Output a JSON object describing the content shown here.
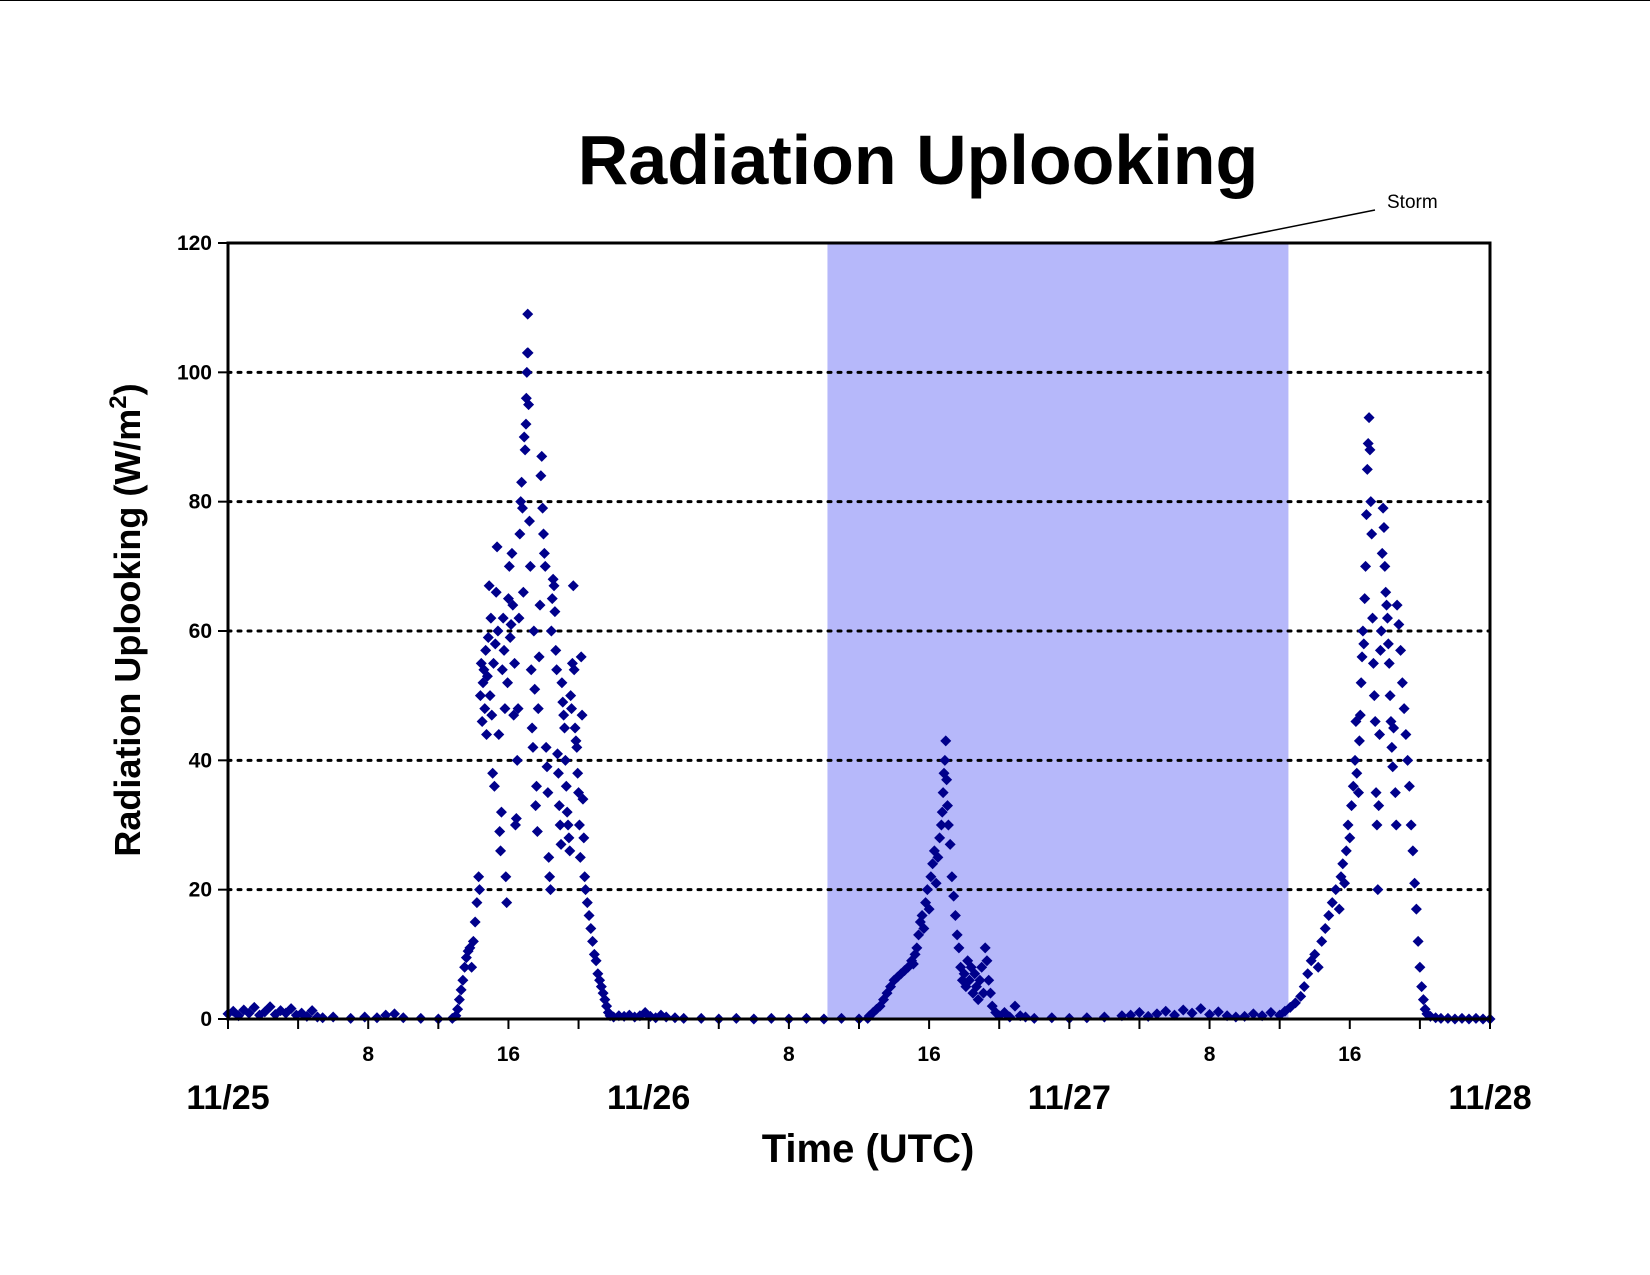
{
  "chart_data": {
    "type": "scatter",
    "title": "Radiation Uplooking",
    "xlabel": "Time (UTC)",
    "ylabel": "Radiation Uplooking (W/m",
    "ylabel_superscript": "2",
    "ylabel_close": ")",
    "xlim_hours": [
      0,
      72
    ],
    "ylim": [
      0,
      120
    ],
    "yticks": [
      0,
      20,
      40,
      60,
      80,
      100,
      120
    ],
    "gridlines_y": [
      20,
      40,
      60,
      80,
      100
    ],
    "grid_style": "dotted",
    "legend": "none",
    "x_date_labels": [
      {
        "hour": 0,
        "label": "11/25"
      },
      {
        "hour": 24,
        "label": "11/26"
      },
      {
        "hour": 48,
        "label": "11/27"
      },
      {
        "hour": 72,
        "label": "11/28"
      }
    ],
    "x_minor_labels": [
      {
        "hour": 8,
        "label": "8"
      },
      {
        "hour": 16,
        "label": "16"
      },
      {
        "hour": 32,
        "label": "8"
      },
      {
        "hour": 40,
        "label": "16"
      },
      {
        "hour": 56,
        "label": "8"
      },
      {
        "hour": 64,
        "label": "16"
      }
    ],
    "x_tick_interval_hours": 4,
    "storm_period_hours": [
      34.2,
      60.5
    ],
    "storm_color": "#b6b8fa",
    "annotation": "Storm",
    "marker_color": "#00008b",
    "marker": "diamond",
    "series_points": [
      [
        0.0,
        0.8
      ],
      [
        0.3,
        1.2
      ],
      [
        0.6,
        0.5
      ],
      [
        0.9,
        1.4
      ],
      [
        1.2,
        0.9
      ],
      [
        1.5,
        1.8
      ],
      [
        1.8,
        0.6
      ],
      [
        2.1,
        1.1
      ],
      [
        2.4,
        1.9
      ],
      [
        2.7,
        0.7
      ],
      [
        3.0,
        1.3
      ],
      [
        3.3,
        0.9
      ],
      [
        3.6,
        1.6
      ],
      [
        3.9,
        0.6
      ],
      [
        4.2,
        0.9
      ],
      [
        4.5,
        0.4
      ],
      [
        4.8,
        1.3
      ],
      [
        5.1,
        0.3
      ],
      [
        5.4,
        0.2
      ],
      [
        6.0,
        0.3
      ],
      [
        7.0,
        0.1
      ],
      [
        7.8,
        0.3
      ],
      [
        8.5,
        0.2
      ],
      [
        9.0,
        0.6
      ],
      [
        9.5,
        0.8
      ],
      [
        10.0,
        0.2
      ],
      [
        11.0,
        0.1
      ],
      [
        12.0,
        0.0
      ],
      [
        12.8,
        0.1
      ],
      [
        13.0,
        0.5
      ],
      [
        13.1,
        1.5
      ],
      [
        13.2,
        3.0
      ],
      [
        13.3,
        4.5
      ],
      [
        13.4,
        6.0
      ],
      [
        13.5,
        8.0
      ],
      [
        13.6,
        9.5
      ],
      [
        13.7,
        10.5
      ],
      [
        13.8,
        11.0
      ],
      [
        13.9,
        8.0
      ],
      [
        14.0,
        12.0
      ],
      [
        14.1,
        15.0
      ],
      [
        14.2,
        18.0
      ],
      [
        14.3,
        22.0
      ],
      [
        14.35,
        20.0
      ],
      [
        14.4,
        50.0
      ],
      [
        14.45,
        55.0
      ],
      [
        14.5,
        46.0
      ],
      [
        14.55,
        52.0
      ],
      [
        14.6,
        54.0
      ],
      [
        14.65,
        48.0
      ],
      [
        14.7,
        57.0
      ],
      [
        14.75,
        44.0
      ],
      [
        14.8,
        53.0
      ],
      [
        14.85,
        59.0
      ],
      [
        14.9,
        67.0
      ],
      [
        14.95,
        50.0
      ],
      [
        15.0,
        62.0
      ],
      [
        15.05,
        47.0
      ],
      [
        15.1,
        38.0
      ],
      [
        15.15,
        55.0
      ],
      [
        15.2,
        36.0
      ],
      [
        15.25,
        58.0
      ],
      [
        15.3,
        66.0
      ],
      [
        15.35,
        73.0
      ],
      [
        15.4,
        60.0
      ],
      [
        15.45,
        44.0
      ],
      [
        15.5,
        29.0
      ],
      [
        15.55,
        26.0
      ],
      [
        15.6,
        32.0
      ],
      [
        15.65,
        54.0
      ],
      [
        15.7,
        62.0
      ],
      [
        15.75,
        57.0
      ],
      [
        15.8,
        48.0
      ],
      [
        15.85,
        22.0
      ],
      [
        15.9,
        18.0
      ],
      [
        15.95,
        52.0
      ],
      [
        16.0,
        65.0
      ],
      [
        16.05,
        70.0
      ],
      [
        16.1,
        59.0
      ],
      [
        16.15,
        61.0
      ],
      [
        16.2,
        72.0
      ],
      [
        16.25,
        64.0
      ],
      [
        16.3,
        47.0
      ],
      [
        16.35,
        55.0
      ],
      [
        16.4,
        30.0
      ],
      [
        16.45,
        31.0
      ],
      [
        16.5,
        40.0
      ],
      [
        16.55,
        48.0
      ],
      [
        16.6,
        62.0
      ],
      [
        16.65,
        75.0
      ],
      [
        16.7,
        80.0
      ],
      [
        16.75,
        83.0
      ],
      [
        16.8,
        79.0
      ],
      [
        16.85,
        66.0
      ],
      [
        16.9,
        90.0
      ],
      [
        16.95,
        88.0
      ],
      [
        17.0,
        92.0
      ],
      [
        17.02,
        96.0
      ],
      [
        17.05,
        100.0
      ],
      [
        17.08,
        103.0
      ],
      [
        17.1,
        109.0
      ],
      [
        17.12,
        103.0
      ],
      [
        17.15,
        95.0
      ],
      [
        17.2,
        77.0
      ],
      [
        17.25,
        70.0
      ],
      [
        17.3,
        54.0
      ],
      [
        17.35,
        45.0
      ],
      [
        17.4,
        42.0
      ],
      [
        17.45,
        60.0
      ],
      [
        17.5,
        51.0
      ],
      [
        17.55,
        33.0
      ],
      [
        17.6,
        36.0
      ],
      [
        17.65,
        29.0
      ],
      [
        17.7,
        48.0
      ],
      [
        17.75,
        56.0
      ],
      [
        17.8,
        64.0
      ],
      [
        17.85,
        84.0
      ],
      [
        17.9,
        87.0
      ],
      [
        17.95,
        79.0
      ],
      [
        18.0,
        75.0
      ],
      [
        18.05,
        72.0
      ],
      [
        18.1,
        70.0
      ],
      [
        18.15,
        42.0
      ],
      [
        18.2,
        39.0
      ],
      [
        18.25,
        35.0
      ],
      [
        18.3,
        25.0
      ],
      [
        18.35,
        22.0
      ],
      [
        18.4,
        20.0
      ],
      [
        18.45,
        60.0
      ],
      [
        18.5,
        65.0
      ],
      [
        18.55,
        68.0
      ],
      [
        18.6,
        67.0
      ],
      [
        18.65,
        63.0
      ],
      [
        18.7,
        57.0
      ],
      [
        18.75,
        54.0
      ],
      [
        18.8,
        41.0
      ],
      [
        18.85,
        38.0
      ],
      [
        18.9,
        33.0
      ],
      [
        18.95,
        30.0
      ],
      [
        19.0,
        27.0
      ],
      [
        19.05,
        52.0
      ],
      [
        19.1,
        49.0
      ],
      [
        19.15,
        47.0
      ],
      [
        19.2,
        45.0
      ],
      [
        19.25,
        40.0
      ],
      [
        19.3,
        36.0
      ],
      [
        19.35,
        32.0
      ],
      [
        19.4,
        30.0
      ],
      [
        19.45,
        28.0
      ],
      [
        19.5,
        26.0
      ],
      [
        19.55,
        50.0
      ],
      [
        19.6,
        48.0
      ],
      [
        19.65,
        55.0
      ],
      [
        19.7,
        67.0
      ],
      [
        19.75,
        54.0
      ],
      [
        19.8,
        45.0
      ],
      [
        19.85,
        43.0
      ],
      [
        19.9,
        42.0
      ],
      [
        19.95,
        38.0
      ],
      [
        20.0,
        35.0
      ],
      [
        20.05,
        30.0
      ],
      [
        20.1,
        25.0
      ],
      [
        20.15,
        56.0
      ],
      [
        20.2,
        47.0
      ],
      [
        20.25,
        34.0
      ],
      [
        20.3,
        28.0
      ],
      [
        20.35,
        22.0
      ],
      [
        20.4,
        20.0
      ],
      [
        20.5,
        18.0
      ],
      [
        20.6,
        16.0
      ],
      [
        20.7,
        14.0
      ],
      [
        20.8,
        12.0
      ],
      [
        20.9,
        10.0
      ],
      [
        21.0,
        9.0
      ],
      [
        21.1,
        7.0
      ],
      [
        21.2,
        6.0
      ],
      [
        21.3,
        5.0
      ],
      [
        21.4,
        4.0
      ],
      [
        21.5,
        3.0
      ],
      [
        21.6,
        2.0
      ],
      [
        21.7,
        1.0
      ],
      [
        21.8,
        0.5
      ],
      [
        22.0,
        0.3
      ],
      [
        22.3,
        0.5
      ],
      [
        22.6,
        0.4
      ],
      [
        22.9,
        0.6
      ],
      [
        23.2,
        0.3
      ],
      [
        23.5,
        0.5
      ],
      [
        23.8,
        1.0
      ],
      [
        24.1,
        0.4
      ],
      [
        24.4,
        0.2
      ],
      [
        24.7,
        0.6
      ],
      [
        25.0,
        0.3
      ],
      [
        25.5,
        0.2
      ],
      [
        26.0,
        0.1
      ],
      [
        27.0,
        0.1
      ],
      [
        28.0,
        0.0
      ],
      [
        29.0,
        0.1
      ],
      [
        30.0,
        0.0
      ],
      [
        31.0,
        0.1
      ],
      [
        32.0,
        0.0
      ],
      [
        33.0,
        0.1
      ],
      [
        34.0,
        0.0
      ],
      [
        35.0,
        0.1
      ],
      [
        36.0,
        0.0
      ],
      [
        36.5,
        0.1
      ],
      [
        36.6,
        0.5
      ],
      [
        36.8,
        1.0
      ],
      [
        37.0,
        1.5
      ],
      [
        37.2,
        2.0
      ],
      [
        37.4,
        3.0
      ],
      [
        37.6,
        4.0
      ],
      [
        37.8,
        5.0
      ],
      [
        38.0,
        6.0
      ],
      [
        38.2,
        6.5
      ],
      [
        38.4,
        7.0
      ],
      [
        38.6,
        7.5
      ],
      [
        38.8,
        8.0
      ],
      [
        39.0,
        9.0
      ],
      [
        39.1,
        8.5
      ],
      [
        39.2,
        10.0
      ],
      [
        39.3,
        11.0
      ],
      [
        39.4,
        13.0
      ],
      [
        39.5,
        15.0
      ],
      [
        39.6,
        16.0
      ],
      [
        39.7,
        14.0
      ],
      [
        39.8,
        18.0
      ],
      [
        39.9,
        20.0
      ],
      [
        40.0,
        17.0
      ],
      [
        40.1,
        22.0
      ],
      [
        40.2,
        24.0
      ],
      [
        40.3,
        26.0
      ],
      [
        40.4,
        21.0
      ],
      [
        40.5,
        25.0
      ],
      [
        40.6,
        28.0
      ],
      [
        40.7,
        30.0
      ],
      [
        40.75,
        32.0
      ],
      [
        40.8,
        35.0
      ],
      [
        40.85,
        38.0
      ],
      [
        40.9,
        40.0
      ],
      [
        40.95,
        43.0
      ],
      [
        41.0,
        37.0
      ],
      [
        41.05,
        33.0
      ],
      [
        41.1,
        30.0
      ],
      [
        41.2,
        27.0
      ],
      [
        41.3,
        22.0
      ],
      [
        41.4,
        19.0
      ],
      [
        41.5,
        16.0
      ],
      [
        41.6,
        13.0
      ],
      [
        41.7,
        11.0
      ],
      [
        41.8,
        8.0
      ],
      [
        41.9,
        6.0
      ],
      [
        42.0,
        7.0
      ],
      [
        42.1,
        5.0
      ],
      [
        42.2,
        9.0
      ],
      [
        42.3,
        6.0
      ],
      [
        42.4,
        8.0
      ],
      [
        42.5,
        4.0
      ],
      [
        42.6,
        7.0
      ],
      [
        42.7,
        5.0
      ],
      [
        42.8,
        3.0
      ],
      [
        42.9,
        6.0
      ],
      [
        43.0,
        8.0
      ],
      [
        43.1,
        4.0
      ],
      [
        43.2,
        11.0
      ],
      [
        43.3,
        9.0
      ],
      [
        43.4,
        6.0
      ],
      [
        43.5,
        4.0
      ],
      [
        43.6,
        2.0
      ],
      [
        43.8,
        1.0
      ],
      [
        44.0,
        0.5
      ],
      [
        44.3,
        1.0
      ],
      [
        44.6,
        0.3
      ],
      [
        44.9,
        2.0
      ],
      [
        45.2,
        0.5
      ],
      [
        45.5,
        0.3
      ],
      [
        46.0,
        0.1
      ],
      [
        47.0,
        0.2
      ],
      [
        48.0,
        0.1
      ],
      [
        49.0,
        0.2
      ],
      [
        50.0,
        0.3
      ],
      [
        51.0,
        0.5
      ],
      [
        51.5,
        0.6
      ],
      [
        52.0,
        1.0
      ],
      [
        52.5,
        0.4
      ],
      [
        53.0,
        0.8
      ],
      [
        53.5,
        1.2
      ],
      [
        54.0,
        0.6
      ],
      [
        54.5,
        1.4
      ],
      [
        55.0,
        0.9
      ],
      [
        55.5,
        1.6
      ],
      [
        56.0,
        0.7
      ],
      [
        56.5,
        1.1
      ],
      [
        57.0,
        0.5
      ],
      [
        57.5,
        0.3
      ],
      [
        58.0,
        0.4
      ],
      [
        58.5,
        0.8
      ],
      [
        59.0,
        0.5
      ],
      [
        59.5,
        1.0
      ],
      [
        60.0,
        0.6
      ],
      [
        60.3,
        1.2
      ],
      [
        60.6,
        1.8
      ],
      [
        60.9,
        2.5
      ],
      [
        61.2,
        3.5
      ],
      [
        61.4,
        5.0
      ],
      [
        61.6,
        7.0
      ],
      [
        61.8,
        9.0
      ],
      [
        62.0,
        10.0
      ],
      [
        62.2,
        8.0
      ],
      [
        62.4,
        12.0
      ],
      [
        62.6,
        14.0
      ],
      [
        62.8,
        16.0
      ],
      [
        63.0,
        18.0
      ],
      [
        63.2,
        20.0
      ],
      [
        63.4,
        17.0
      ],
      [
        63.5,
        22.0
      ],
      [
        63.6,
        24.0
      ],
      [
        63.7,
        21.0
      ],
      [
        63.8,
        26.0
      ],
      [
        63.9,
        30.0
      ],
      [
        64.0,
        28.0
      ],
      [
        64.1,
        33.0
      ],
      [
        64.2,
        36.0
      ],
      [
        64.3,
        40.0
      ],
      [
        64.35,
        46.0
      ],
      [
        64.4,
        38.0
      ],
      [
        64.5,
        35.0
      ],
      [
        64.55,
        43.0
      ],
      [
        64.6,
        47.0
      ],
      [
        64.65,
        52.0
      ],
      [
        64.7,
        56.0
      ],
      [
        64.75,
        60.0
      ],
      [
        64.8,
        58.0
      ],
      [
        64.85,
        65.0
      ],
      [
        64.9,
        70.0
      ],
      [
        64.95,
        78.0
      ],
      [
        65.0,
        85.0
      ],
      [
        65.05,
        89.0
      ],
      [
        65.1,
        93.0
      ],
      [
        65.15,
        88.0
      ],
      [
        65.2,
        80.0
      ],
      [
        65.25,
        75.0
      ],
      [
        65.3,
        62.0
      ],
      [
        65.35,
        55.0
      ],
      [
        65.4,
        50.0
      ],
      [
        65.45,
        46.0
      ],
      [
        65.5,
        35.0
      ],
      [
        65.55,
        30.0
      ],
      [
        65.6,
        20.0
      ],
      [
        65.65,
        33.0
      ],
      [
        65.7,
        44.0
      ],
      [
        65.75,
        57.0
      ],
      [
        65.8,
        60.0
      ],
      [
        65.85,
        72.0
      ],
      [
        65.9,
        79.0
      ],
      [
        65.95,
        76.0
      ],
      [
        66.0,
        70.0
      ],
      [
        66.05,
        66.0
      ],
      [
        66.1,
        64.0
      ],
      [
        66.15,
        62.0
      ],
      [
        66.2,
        58.0
      ],
      [
        66.25,
        55.0
      ],
      [
        66.3,
        50.0
      ],
      [
        66.35,
        46.0
      ],
      [
        66.4,
        42.0
      ],
      [
        66.45,
        39.0
      ],
      [
        66.5,
        45.0
      ],
      [
        66.6,
        35.0
      ],
      [
        66.65,
        30.0
      ],
      [
        66.7,
        64.0
      ],
      [
        66.8,
        61.0
      ],
      [
        66.9,
        57.0
      ],
      [
        67.0,
        52.0
      ],
      [
        67.1,
        48.0
      ],
      [
        67.2,
        44.0
      ],
      [
        67.3,
        40.0
      ],
      [
        67.4,
        36.0
      ],
      [
        67.5,
        30.0
      ],
      [
        67.6,
        26.0
      ],
      [
        67.7,
        21.0
      ],
      [
        67.8,
        17.0
      ],
      [
        67.9,
        12.0
      ],
      [
        68.0,
        8.0
      ],
      [
        68.1,
        5.0
      ],
      [
        68.2,
        3.0
      ],
      [
        68.3,
        1.5
      ],
      [
        68.4,
        0.8
      ],
      [
        68.6,
        0.4
      ],
      [
        68.9,
        0.2
      ],
      [
        69.2,
        0.1
      ],
      [
        69.6,
        0.1
      ],
      [
        70.0,
        0.0
      ],
      [
        70.4,
        0.1
      ],
      [
        70.8,
        0.0
      ],
      [
        71.2,
        0.1
      ],
      [
        71.6,
        0.0
      ],
      [
        72.0,
        0.0
      ]
    ]
  }
}
